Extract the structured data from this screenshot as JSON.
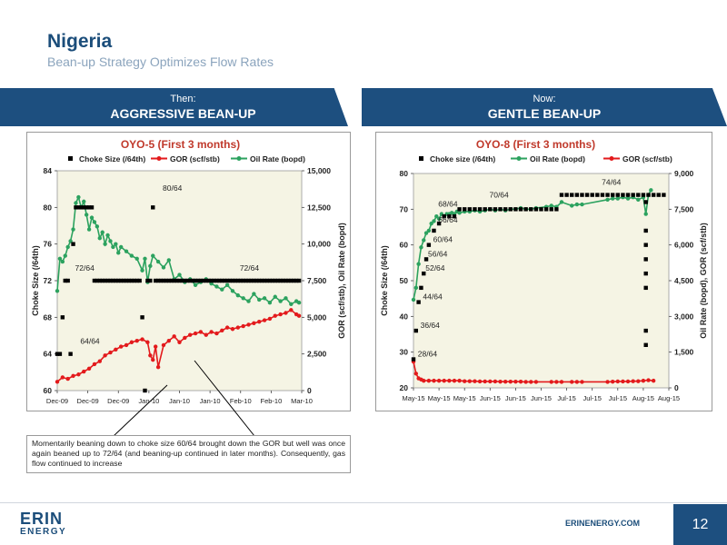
{
  "header": {
    "title": "Nigeria",
    "subtitle": "Bean-up Strategy Optimizes Flow Rates"
  },
  "banners": {
    "left": {
      "small": "Then:",
      "big": "AGGRESSIVE BEAN-UP"
    },
    "right": {
      "small": "Now:",
      "big": "GENTLE BEAN-UP"
    }
  },
  "callout": {
    "text": "Momentarily beaning down to choke size 60/64 brought down the GOR but well was once again beaned up to 72/64 (and beaning-up continued in later months). Consequently, gas flow continued to increase"
  },
  "footer": {
    "logo_top": "ERIN",
    "logo_bottom": "ENERGY",
    "website": "ERINENERGY.COM",
    "page_number": "12"
  },
  "colors": {
    "brand": "#1d4f7f",
    "choke": "#000000",
    "gor": "#e31a1c",
    "oil": "#2ca25f",
    "plot_bg": "#f5f4e4"
  },
  "chart_data": [
    {
      "type": "scatter",
      "title": "OYO-5 (First 3 months)",
      "ylabel": "Choke Size (/64th)",
      "y2label": "GOR (scf/stb), Oil Rate (bopd)",
      "ylim": [
        60,
        84
      ],
      "yticks": [
        "60",
        "64",
        "68",
        "72",
        "76",
        "80",
        "84"
      ],
      "y2lim": [
        0,
        15000
      ],
      "y2ticks": [
        "0",
        "2,500",
        "5,000",
        "7,500",
        "10,000",
        "12,500",
        "15,000"
      ],
      "xticks": [
        "Dec-09",
        "Dec-09",
        "Dec-09",
        "Jan-10",
        "Jan-10",
        "Jan-10",
        "Feb-10",
        "Feb-10",
        "Mar-10"
      ],
      "x_range": [
        0,
        92
      ],
      "legend_position": "top",
      "grid": false,
      "series": [
        {
          "name": "Choke Size (/64th)",
          "axis": "left",
          "style": "marker",
          "x": [
            0,
            1,
            2,
            3,
            4,
            5,
            6,
            7,
            8,
            9,
            10,
            11,
            12,
            13,
            14,
            15,
            16,
            17,
            18,
            19,
            20,
            21,
            22,
            23,
            24,
            25,
            26,
            27,
            28,
            29,
            30,
            31,
            32,
            33,
            34,
            35,
            36,
            37,
            38,
            39,
            40,
            41,
            42,
            43,
            44,
            45,
            46,
            47,
            48,
            49,
            50,
            51,
            52,
            53,
            54,
            55,
            56,
            57,
            58,
            59,
            60,
            61,
            62,
            63,
            64,
            65,
            66,
            67,
            68,
            69,
            70,
            71,
            72,
            73,
            74,
            75,
            76,
            77,
            78,
            79,
            80,
            81,
            82,
            83,
            84,
            85,
            86,
            87,
            88,
            89,
            90,
            91
          ],
          "y": [
            64,
            64,
            68,
            72,
            72,
            64,
            76,
            80,
            80,
            80,
            80,
            80,
            80,
            80,
            72,
            72,
            72,
            72,
            72,
            72,
            72,
            72,
            72,
            72,
            72,
            72,
            72,
            72,
            72,
            72,
            72,
            72,
            68,
            60,
            72,
            72,
            80,
            72,
            72,
            72,
            72,
            72,
            72,
            72,
            72,
            72,
            72,
            72,
            72,
            72,
            72,
            72,
            72,
            72,
            72,
            72,
            72,
            72,
            72,
            72,
            72,
            72,
            72,
            72,
            72,
            72,
            72,
            72,
            72,
            72,
            72,
            72,
            72,
            72,
            72,
            72,
            72,
            72,
            72,
            72,
            72,
            72,
            72,
            72,
            72,
            72,
            72,
            72,
            72,
            72,
            72,
            72
          ]
        },
        {
          "name": "GOR (scf/stb)",
          "axis": "right",
          "style": "line-marker",
          "x": [
            0,
            2,
            4,
            6,
            8,
            10,
            12,
            14,
            16,
            18,
            20,
            22,
            24,
            26,
            28,
            30,
            32,
            34,
            35,
            36,
            37,
            38,
            40,
            42,
            44,
            46,
            48,
            50,
            52,
            54,
            56,
            58,
            60,
            62,
            64,
            66,
            68,
            70,
            72,
            74,
            76,
            78,
            80,
            82,
            84,
            86,
            88,
            90,
            91
          ],
          "y": [
            600,
            900,
            800,
            1000,
            1100,
            1300,
            1500,
            1800,
            2000,
            2400,
            2600,
            2800,
            3000,
            3100,
            3300,
            3400,
            3500,
            3300,
            2400,
            2100,
            3000,
            1600,
            3100,
            3400,
            3700,
            3300,
            3600,
            3800,
            3900,
            4000,
            3800,
            4000,
            3900,
            4100,
            4300,
            4200,
            4300,
            4400,
            4500,
            4600,
            4700,
            4800,
            4900,
            5100,
            5200,
            5300,
            5500,
            5200,
            5100
          ]
        },
        {
          "name": "Oil Rate (bopd)",
          "axis": "right",
          "style": "line-marker",
          "x": [
            0,
            1,
            2,
            3,
            4,
            5,
            6,
            7,
            8,
            9,
            10,
            11,
            12,
            13,
            14,
            15,
            16,
            17,
            18,
            19,
            20,
            21,
            22,
            23,
            24,
            26,
            28,
            30,
            32,
            33,
            34,
            35,
            36,
            38,
            40,
            42,
            44,
            46,
            48,
            50,
            52,
            54,
            56,
            58,
            60,
            62,
            64,
            66,
            68,
            70,
            72,
            74,
            76,
            78,
            80,
            82,
            84,
            86,
            88,
            90,
            91
          ],
          "y": [
            6800,
            9000,
            8800,
            9200,
            9800,
            10200,
            11000,
            12800,
            13200,
            12500,
            12900,
            12000,
            11000,
            11800,
            11500,
            11200,
            10400,
            10800,
            10000,
            10600,
            10200,
            9800,
            10000,
            9400,
            9800,
            9500,
            9200,
            9000,
            8200,
            9000,
            7400,
            8500,
            9200,
            8800,
            8400,
            8900,
            7600,
            7900,
            7400,
            7600,
            7200,
            7400,
            7600,
            7300,
            7100,
            6900,
            7200,
            6800,
            6500,
            6300,
            6100,
            6600,
            6200,
            6300,
            6000,
            6400,
            6100,
            6300,
            5900,
            6100,
            6000
          ]
        }
      ],
      "annotations": [
        {
          "text": "80/64",
          "x": 39,
          "y": 81.5
        },
        {
          "text": "72/64",
          "x": 6,
          "y": 72.8
        },
        {
          "text": "72/64",
          "x": 68,
          "y": 72.8
        },
        {
          "text": "64/64",
          "x": 8,
          "y": 64.8
        }
      ]
    },
    {
      "type": "scatter",
      "title": "OYO-8 (First 3 months)",
      "ylabel": "Choke Size (/64th)",
      "y2label": "Oil Rate (bopd), GOR (scf/stb)",
      "ylim": [
        20,
        80
      ],
      "yticks": [
        "20",
        "30",
        "40",
        "50",
        "60",
        "70",
        "80"
      ],
      "y2lim": [
        0,
        9000
      ],
      "y2ticks": [
        "0",
        "1,500",
        "3,000",
        "4,500",
        "6,000",
        "7,500",
        "9,000"
      ],
      "xticks": [
        "May-15",
        "May-15",
        "May-15",
        "Jun-15",
        "Jun-15",
        "Jun-15",
        "Jul-15",
        "Jul-15",
        "Jul-15",
        "Aug-15",
        "Aug-15"
      ],
      "x_range": [
        0,
        100
      ],
      "legend_position": "top",
      "grid": false,
      "series": [
        {
          "name": "Choke size (/64th)",
          "axis": "left",
          "style": "marker",
          "x": [
            0,
            1,
            2,
            3,
            4,
            5,
            6,
            8,
            10,
            12,
            14,
            16,
            18,
            20,
            22,
            24,
            26,
            28,
            30,
            32,
            34,
            36,
            38,
            40,
            42,
            44,
            46,
            48,
            50,
            52,
            54,
            56,
            58,
            60,
            62,
            64,
            66,
            68,
            70,
            72,
            74,
            76,
            78,
            80,
            82,
            84,
            86,
            88,
            90,
            91,
            91,
            91,
            91,
            91,
            91,
            91,
            91,
            92,
            94,
            96,
            98
          ],
          "y": [
            28,
            36,
            44,
            48,
            52,
            56,
            60,
            64,
            66,
            68,
            68,
            68,
            70,
            70,
            70,
            70,
            70,
            70,
            70,
            70,
            70,
            70,
            70,
            70,
            70,
            70,
            70,
            70,
            70,
            70,
            70,
            70,
            74,
            74,
            74,
            74,
            74,
            74,
            74,
            74,
            74,
            74,
            74,
            74,
            74,
            74,
            74,
            74,
            74,
            72,
            64,
            60,
            56,
            52,
            48,
            36,
            32,
            74,
            74,
            74,
            74
          ]
        },
        {
          "name": "Oil Rate (bopd)",
          "axis": "right",
          "style": "line-marker",
          "x": [
            0,
            1,
            2,
            3,
            4,
            5,
            6,
            7,
            8,
            9,
            10,
            11,
            12,
            13,
            14,
            15,
            16,
            17,
            18,
            20,
            22,
            24,
            26,
            28,
            30,
            32,
            34,
            36,
            38,
            40,
            42,
            44,
            46,
            48,
            52,
            54,
            56,
            58,
            62,
            64,
            66,
            76,
            78,
            80,
            82,
            84,
            86,
            88,
            90,
            91,
            92,
            93
          ],
          "y": [
            3700,
            4200,
            5200,
            5900,
            6200,
            6500,
            6600,
            6900,
            7000,
            7200,
            7100,
            7300,
            7200,
            7300,
            7300,
            7350,
            7300,
            7400,
            7350,
            7400,
            7400,
            7450,
            7400,
            7450,
            7500,
            7450,
            7500,
            7450,
            7500,
            7500,
            7550,
            7500,
            7500,
            7550,
            7600,
            7650,
            7600,
            7800,
            7650,
            7700,
            7700,
            7900,
            7950,
            7950,
            8000,
            7950,
            8000,
            7900,
            8000,
            7300,
            8100,
            8300
          ]
        },
        {
          "name": "GOR (scf/stb)",
          "axis": "right",
          "style": "line-marker",
          "x": [
            0,
            1,
            2,
            3,
            4,
            6,
            8,
            10,
            12,
            14,
            16,
            18,
            20,
            22,
            24,
            26,
            28,
            30,
            32,
            34,
            36,
            38,
            40,
            42,
            44,
            46,
            48,
            54,
            56,
            58,
            62,
            64,
            66,
            76,
            78,
            80,
            82,
            84,
            86,
            88,
            90,
            92,
            94
          ],
          "y": [
            1100,
            600,
            400,
            350,
            300,
            300,
            300,
            300,
            300,
            300,
            300,
            300,
            280,
            280,
            280,
            270,
            270,
            270,
            270,
            260,
            260,
            260,
            260,
            260,
            250,
            250,
            250,
            250,
            250,
            250,
            250,
            250,
            250,
            250,
            260,
            270,
            270,
            270,
            280,
            280,
            300,
            320,
            300
          ]
        }
      ],
      "annotations": [
        {
          "text": "74/64",
          "x": 73,
          "y": 76
        },
        {
          "text": "70/64",
          "x": 29,
          "y": 72.5
        },
        {
          "text": "68/64",
          "x": 9,
          "y": 70
        },
        {
          "text": "66/64",
          "x": 9,
          "y": 65.5
        },
        {
          "text": "60/64",
          "x": 7,
          "y": 60
        },
        {
          "text": "56/64",
          "x": 5,
          "y": 56
        },
        {
          "text": "52/64",
          "x": 4,
          "y": 52
        },
        {
          "text": "44/64",
          "x": 3,
          "y": 44
        },
        {
          "text": "36/64",
          "x": 2,
          "y": 36
        },
        {
          "text": "28/64",
          "x": 1,
          "y": 28
        }
      ]
    }
  ]
}
